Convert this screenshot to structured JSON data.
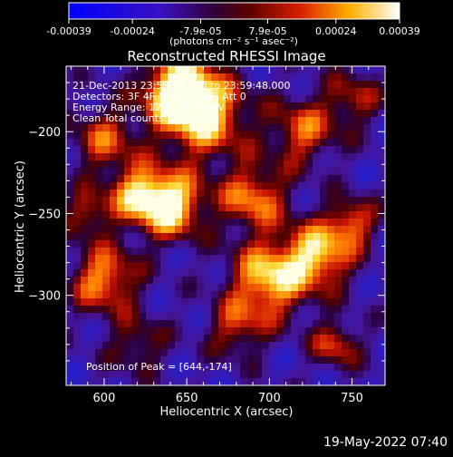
{
  "chart_data": {
    "type": "heatmap",
    "title": "Reconstructed RHESSI Image",
    "xlabel": "Heliocentric X (arcsec)",
    "ylabel": "Heliocentric Y (arcsec)",
    "xlim": [
      577,
      770
    ],
    "ylim": [
      -355,
      -160
    ],
    "x_ticks": [
      600,
      650,
      700,
      750
    ],
    "y_ticks": [
      -200,
      -250,
      -300
    ],
    "colorbar": {
      "range": [
        -0.00039,
        0.00039
      ],
      "ticks": [
        "-0.00039",
        "-0.00024",
        "-7.9e-05",
        "7.9e-05",
        "0.00024",
        "0.00039"
      ],
      "tick_values": [
        -0.00039,
        -0.00024,
        -7.9e-05,
        7.9e-05,
        0.00024,
        0.00039
      ],
      "label_line": "(photons cm⁻² s⁻¹ asec⁻²)"
    },
    "annotations": [
      "21-Dec-2013 23:53:48.000 to 23:59:48.000",
      "Detectors: 3F 4F 5F 6F 7F 8F, Att 0",
      "Energy Range: 12.0 - 25.0 keV",
      "Clean     Total counts: 1.20E+04"
    ],
    "peak_label": "Position of Peak = [644,-174]",
    "peak": [
      644,
      -174
    ],
    "colors": {
      "low": "#0000ff",
      "mid": "#200020",
      "high": "#ffffff"
    }
  },
  "footer": {
    "date": "19-May-2022 07:40"
  }
}
